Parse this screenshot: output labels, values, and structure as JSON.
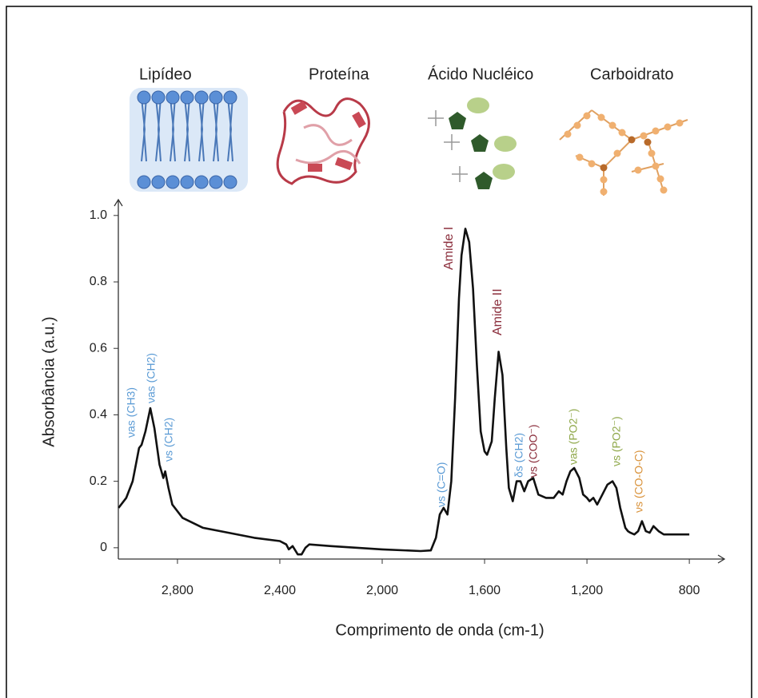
{
  "chart_data": {
    "type": "line",
    "headers": [
      "Lipídeo",
      "Proteína",
      "Ácido Nucléico",
      "Carboidrato"
    ],
    "x_label": "Comprimento de onda (cm-1)",
    "y_label": "Absorbância (a.u.)",
    "xlim": [
      3031,
      666
    ],
    "ylim": [
      -0.034,
      1.05
    ],
    "xticks": [
      {
        "value": 2800,
        "label": "2,800"
      },
      {
        "value": 2400,
        "label": "2,400"
      },
      {
        "value": 2000,
        "label": "2,000"
      },
      {
        "value": 1600,
        "label": "1,600"
      },
      {
        "value": 1200,
        "label": "1,200"
      },
      800
    ],
    "yticks": [
      0,
      0.2,
      0.4,
      0.6,
      0.8,
      {
        "value": 1,
        "label": "1.0"
      }
    ],
    "series": [
      {
        "color": "#111111",
        "x": [
          3030,
          3000,
          2975,
          2960,
          2950,
          2940,
          2925,
          2906,
          2890,
          2870,
          2855,
          2848,
          2835,
          2820,
          2780,
          2700,
          2600,
          2500,
          2400,
          2375,
          2365,
          2350,
          2330,
          2315,
          2300,
          2285,
          2200,
          2000,
          1850,
          1810,
          1790,
          1775,
          1760,
          1745,
          1730,
          1715,
          1700,
          1690,
          1675,
          1660,
          1645,
          1630,
          1615,
          1600,
          1590,
          1572,
          1560,
          1545,
          1530,
          1515,
          1505,
          1490,
          1475,
          1460,
          1445,
          1430,
          1410,
          1390,
          1360,
          1330,
          1310,
          1295,
          1280,
          1265,
          1250,
          1230,
          1215,
          1200,
          1190,
          1175,
          1160,
          1140,
          1120,
          1100,
          1085,
          1070,
          1050,
          1040,
          1030,
          1015,
          1000,
          985,
          970,
          955,
          940,
          920,
          900,
          850,
          800
        ],
        "y": [
          0.12,
          0.15,
          0.2,
          0.26,
          0.3,
          0.31,
          0.35,
          0.42,
          0.36,
          0.25,
          0.21,
          0.23,
          0.18,
          0.13,
          0.09,
          0.06,
          0.045,
          0.03,
          0.02,
          0.01,
          -0.005,
          0.005,
          -0.02,
          -0.02,
          0.0,
          0.01,
          0.005,
          -0.005,
          -0.01,
          -0.008,
          0.03,
          0.1,
          0.12,
          0.1,
          0.2,
          0.45,
          0.75,
          0.88,
          0.96,
          0.92,
          0.78,
          0.55,
          0.35,
          0.29,
          0.28,
          0.32,
          0.45,
          0.59,
          0.52,
          0.3,
          0.18,
          0.14,
          0.2,
          0.2,
          0.17,
          0.2,
          0.21,
          0.16,
          0.15,
          0.15,
          0.17,
          0.16,
          0.2,
          0.23,
          0.24,
          0.21,
          0.16,
          0.15,
          0.14,
          0.15,
          0.13,
          0.16,
          0.19,
          0.2,
          0.18,
          0.12,
          0.06,
          0.05,
          0.045,
          0.04,
          0.05,
          0.08,
          0.05,
          0.045,
          0.065,
          0.05,
          0.04,
          0.04,
          0.04
        ]
      }
    ],
    "annotations": [
      {
        "text": "νas (CH3)",
        "color": "#5b9bd5"
      },
      {
        "text": "νas (CH2)",
        "color": "#5b9bd5"
      },
      {
        "text": "νs (CH2)",
        "color": "#5b9bd5"
      },
      {
        "text": "νs (C=O)",
        "color": "#5b9bd5"
      },
      {
        "text": "Amide I",
        "color": "#8b2e3c"
      },
      {
        "text": "Amide II",
        "color": "#8b2e3c"
      },
      {
        "text": "δs (CH2)",
        "color": "#5b9bd5"
      },
      {
        "text": "νs (COO⁻)",
        "color": "#8b2e3c"
      },
      {
        "text": "νas (PO2⁻)",
        "color": "#8fa84a"
      },
      {
        "text": "νs (PO2⁻)",
        "color": "#8fa84a"
      },
      {
        "text": "νs (CO-O-C)",
        "color": "#d9923a"
      }
    ]
  }
}
